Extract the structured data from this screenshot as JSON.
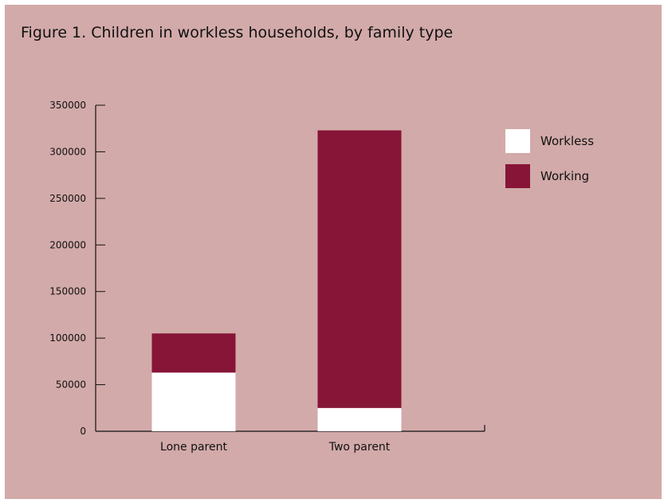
{
  "chart_data": {
    "type": "bar",
    "stacked": true,
    "title": "Figure 1. Children in workless households, by family type",
    "categories": [
      "Lone parent",
      "Two parent"
    ],
    "series": [
      {
        "name": "Workless",
        "values": [
          63000,
          25000
        ],
        "color": "#ffffff"
      },
      {
        "name": "Working",
        "values": [
          42000,
          298000
        ],
        "color": "#861537"
      }
    ],
    "ylim": [
      0,
      350000
    ],
    "yticks": [
      0,
      50000,
      100000,
      150000,
      200000,
      250000,
      300000,
      350000
    ],
    "ytick_labels": [
      "0",
      "50000",
      "100000",
      "150000",
      "200000",
      "250000",
      "300000",
      "350000"
    ],
    "legend_position": "top-right",
    "grid": false,
    "background": "#d2aaa9"
  }
}
